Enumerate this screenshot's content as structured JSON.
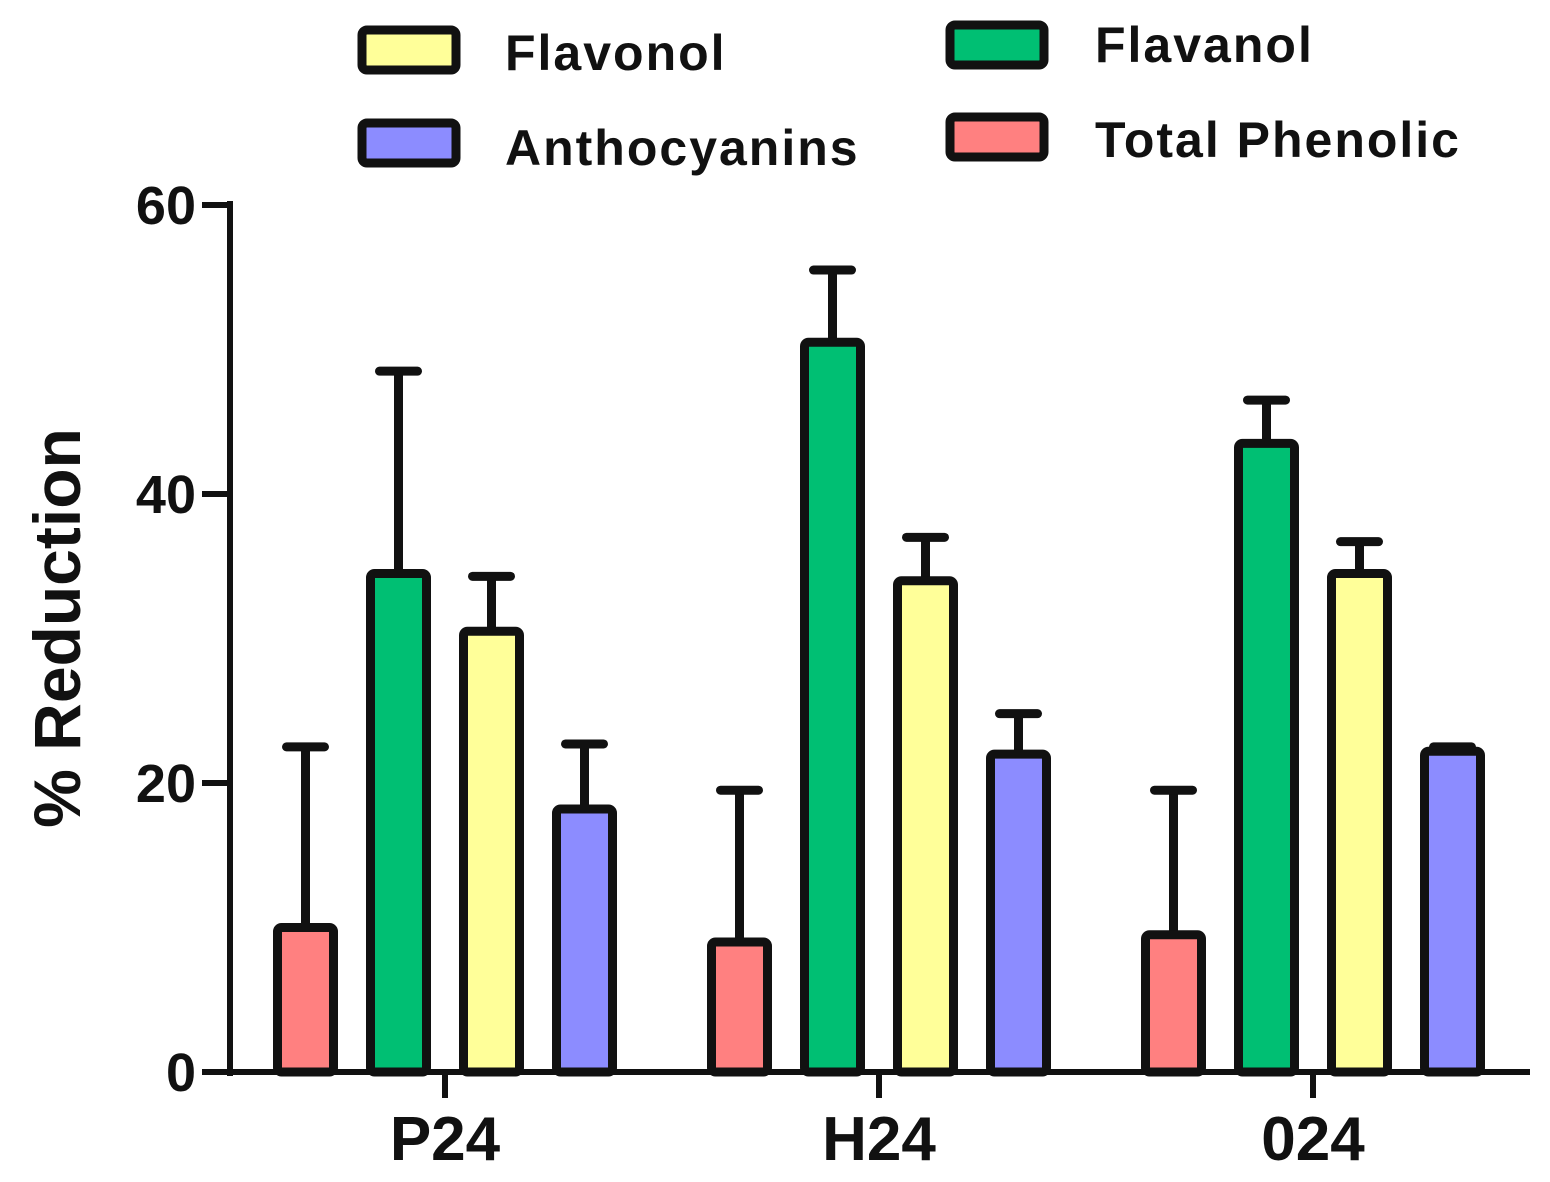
{
  "chart_data": {
    "type": "bar",
    "title": "",
    "xlabel": "",
    "ylabel": "% Reduction",
    "ylim": [
      0,
      60
    ],
    "yticks": [
      "0",
      "20",
      "40",
      "60"
    ],
    "categories": [
      "P24",
      "H24",
      "024"
    ],
    "series": [
      {
        "name": "Total Phenolic",
        "color": "#ff8080",
        "values": [
          10,
          9,
          9.5
        ],
        "errors": [
          12.5,
          10.5,
          10
        ]
      },
      {
        "name": "Flavanol",
        "color": "#00bf73",
        "values": [
          34.5,
          50.5,
          43.5
        ],
        "errors": [
          14,
          5,
          3
        ]
      },
      {
        "name": "Flavonol",
        "color": "#ffff99",
        "values": [
          30.5,
          34,
          34.5
        ],
        "errors": [
          3.8,
          3,
          2.2
        ]
      },
      {
        "name": "Anthocyanins",
        "color": "#8c8cff",
        "values": [
          18.2,
          22,
          22.2
        ],
        "errors": [
          4.5,
          2.8,
          0.3
        ]
      }
    ],
    "legend": {
      "placement": "top",
      "order": [
        "Flavonol",
        "Flavanol",
        "Anthocyanins",
        "Total Phenolic"
      ]
    }
  }
}
